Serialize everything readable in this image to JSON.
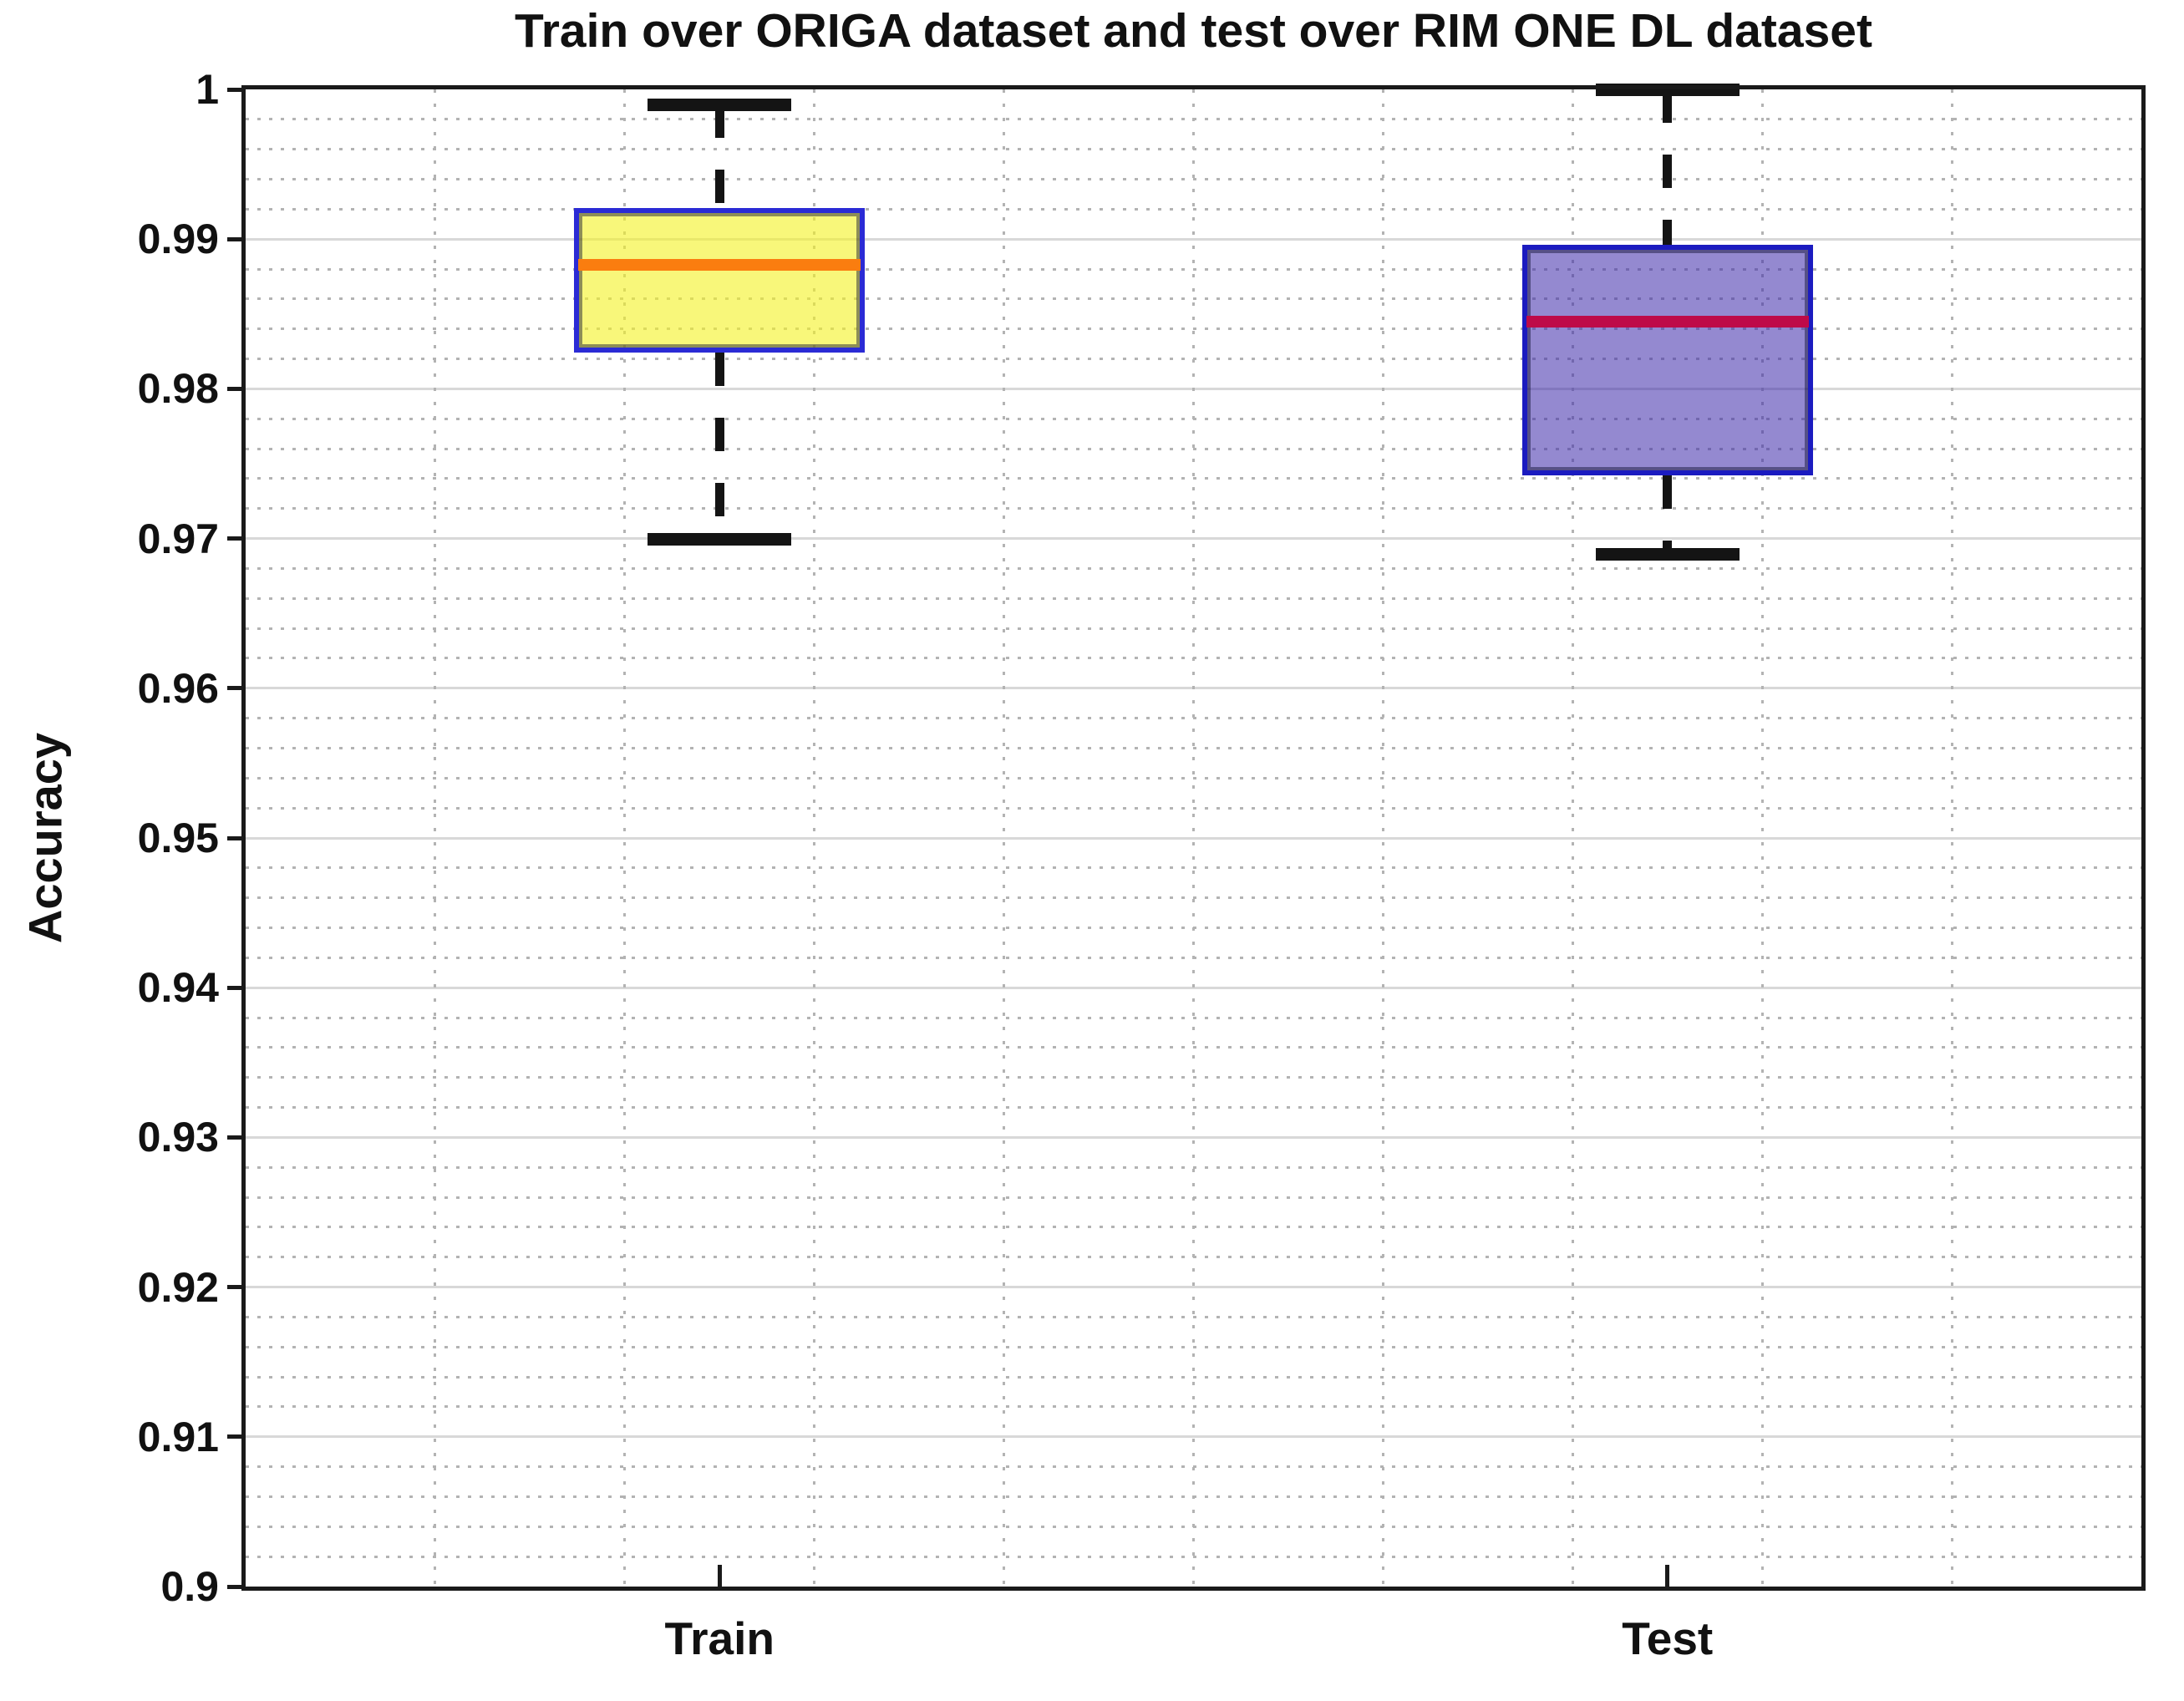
{
  "chart_data": {
    "type": "box",
    "title": "Train over ORIGA dataset and test over RIM ONE DL dataset",
    "ylabel": "Accuracy",
    "xlabel": "",
    "categories": [
      "Train",
      "Test"
    ],
    "ylim": [
      0.9,
      1.0
    ],
    "ytick_interval": 0.01,
    "yminor_interval": 0.002,
    "xminor_interval": 0.2,
    "ytick_labels": [
      "1",
      "0.99",
      "0.98",
      "0.97",
      "0.96",
      "0.95",
      "0.94",
      "0.93",
      "0.92",
      "0.91",
      "0.9"
    ],
    "grid": {
      "major_gridlines": true,
      "minor_gridlines": true,
      "legend": "none"
    },
    "series": [
      {
        "name": "Train",
        "whisker_low": 0.97,
        "q1": 0.9824,
        "median": 0.9883,
        "q3": 0.9921,
        "whisker_high": 0.999,
        "fill_color": "#F8F77A",
        "fill_base": "#F4F228",
        "fill_alpha": 0.62,
        "edge_color": "#2B2BD5",
        "median_color": "#FA7D0F"
      },
      {
        "name": "Test",
        "whisker_low": 0.969,
        "q1": 0.9742,
        "median": 0.9845,
        "q3": 0.9896,
        "whisker_high": 1.0,
        "fill_color": "#9489D1",
        "fill_base": "#3C28AA",
        "fill_alpha": 0.55,
        "edge_color": "#1B1BC0",
        "median_color": "#BE0A48"
      }
    ],
    "colors": {
      "axis": "#1a1a1a",
      "grid_major": "#d8d8d8",
      "grid_minor": "#b3b3b3",
      "whisker": "#141414",
      "background": "#ffffff",
      "text": "#111111"
    }
  }
}
